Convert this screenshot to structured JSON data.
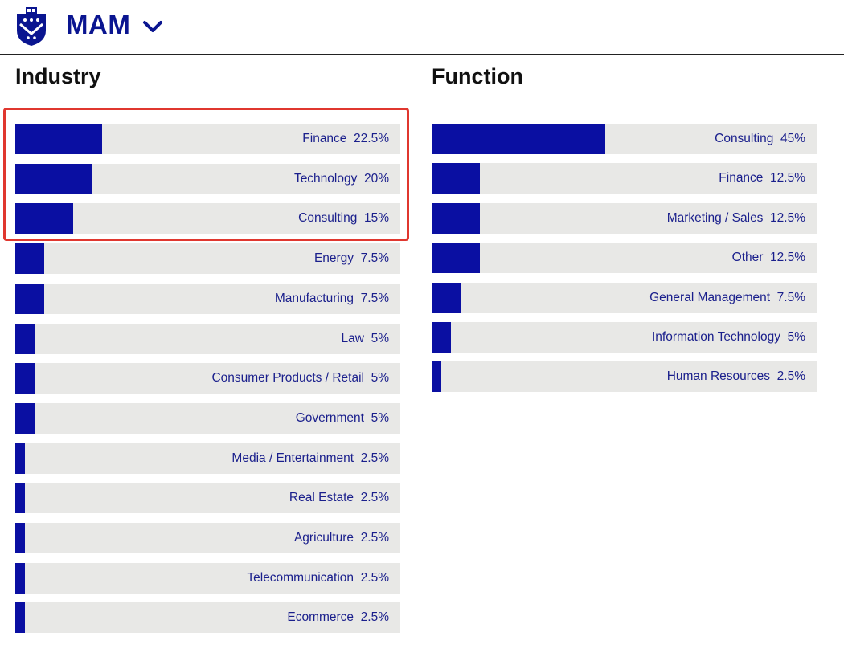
{
  "header": {
    "program": "MAM"
  },
  "icons": {
    "logo": "university-shield-icon",
    "dropdown": "chevron-down-icon"
  },
  "colors": {
    "bar": "#0a0fa2",
    "track": "#e8e8e6",
    "label": "#1a1f8c",
    "brand": "#0a1590",
    "highlight": "#e0372f"
  },
  "chart_data": [
    {
      "type": "bar",
      "orientation": "horizontal",
      "title": "Industry",
      "xlim": [
        0,
        100
      ],
      "categories": [
        "Finance",
        "Technology",
        "Consulting",
        "Energy",
        "Manufacturing",
        "Law",
        "Consumer Products / Retail",
        "Government",
        "Media / Entertainment",
        "Real Estate",
        "Agriculture",
        "Telecommunication",
        "Ecommerce"
      ],
      "values": [
        22.5,
        20,
        15,
        7.5,
        7.5,
        5,
        5,
        5,
        2.5,
        2.5,
        2.5,
        2.5,
        2.5
      ],
      "value_labels": [
        "22.5%",
        "20%",
        "15%",
        "7.5%",
        "7.5%",
        "5%",
        "5%",
        "5%",
        "2.5%",
        "2.5%",
        "2.5%",
        "2.5%",
        "2.5%"
      ],
      "highlighted_categories": [
        "Finance",
        "Technology",
        "Consulting"
      ]
    },
    {
      "type": "bar",
      "orientation": "horizontal",
      "title": "Function",
      "xlim": [
        0,
        100
      ],
      "categories": [
        "Consulting",
        "Finance",
        "Marketing / Sales",
        "Other",
        "General Management",
        "Information Technology",
        "Human Resources"
      ],
      "values": [
        45,
        12.5,
        12.5,
        12.5,
        7.5,
        5,
        2.5
      ],
      "value_labels": [
        "45%",
        "12.5%",
        "12.5%",
        "12.5%",
        "7.5%",
        "5%",
        "2.5%"
      ]
    }
  ]
}
